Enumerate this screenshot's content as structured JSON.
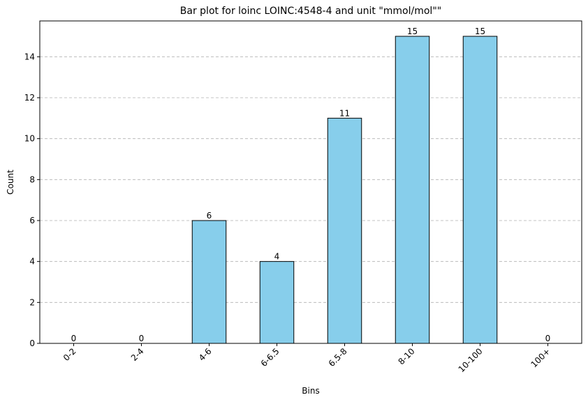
{
  "chart_data": {
    "type": "bar",
    "title": "Bar plot for loinc LOINC:4548-4 and unit \"mmol/mol\"\"",
    "xlabel": "Bins",
    "ylabel": "Count",
    "categories": [
      "0-2",
      "2-4",
      "4-6",
      "6-6.5",
      "6.5-8",
      "8-10",
      "10-100",
      "100+"
    ],
    "values": [
      0,
      0,
      6,
      4,
      11,
      15,
      15,
      0
    ],
    "ylim": [
      0,
      15.75
    ],
    "yticks": [
      0,
      2,
      4,
      6,
      8,
      10,
      12,
      14
    ],
    "grid": "y-dashed",
    "bar_color": "#87ceeb",
    "edge_color": "#000000",
    "grid_color": "#b0b0b0",
    "show_data_labels": true
  }
}
